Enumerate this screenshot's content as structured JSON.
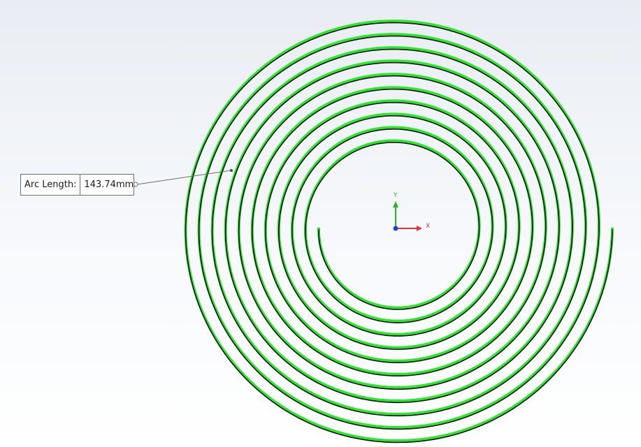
{
  "callout": {
    "label": "Arc Length:",
    "value": "143.74mm"
  },
  "triad": {
    "x_label": "X",
    "y_label": "Y"
  },
  "colors": {
    "spiral_highlight": "#2ee62e",
    "spiral_edge": "#111111",
    "x_axis": "#e8303a",
    "y_axis": "#27b827",
    "z_axis": "#2040d0",
    "leader": "#6e6e6e"
  },
  "icons": [
    "coordinate-triad-icon",
    "leader-anchor-icon"
  ]
}
